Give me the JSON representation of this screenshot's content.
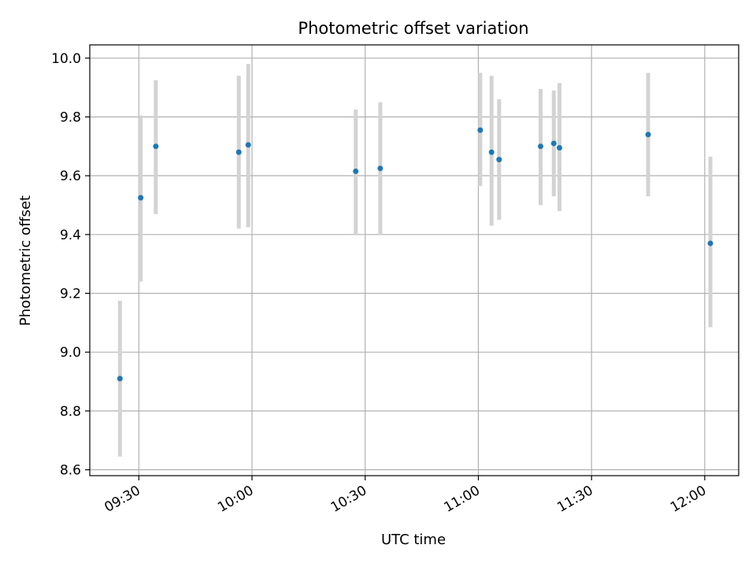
{
  "chart_data": {
    "type": "scatter",
    "title": "Photometric offset variation",
    "xlabel": "UTC time",
    "ylabel": "Photometric offset",
    "xlim": [
      "09:17:00",
      "12:09:00"
    ],
    "ylim": [
      8.58,
      10.045
    ],
    "x_ticks": [
      "09:30",
      "10:00",
      "10:30",
      "11:00",
      "11:30",
      "12:00"
    ],
    "y_ticks": [
      "8.6",
      "8.8",
      "9.0",
      "9.2",
      "9.4",
      "9.6",
      "9.8",
      "10.0"
    ],
    "grid": true,
    "colors": {
      "points": "#1f77b4",
      "errorbars": "#d3d3d3",
      "grid": "#b0b0b0"
    },
    "points": [
      {
        "time": "09:25:00",
        "value": 8.91,
        "err_low": 8.645,
        "err_high": 9.175
      },
      {
        "time": "09:30:30",
        "value": 9.525,
        "err_low": 9.24,
        "err_high": 9.805
      },
      {
        "time": "09:34:30",
        "value": 9.7,
        "err_low": 9.47,
        "err_high": 9.925
      },
      {
        "time": "09:56:30",
        "value": 9.68,
        "err_low": 9.42,
        "err_high": 9.94
      },
      {
        "time": "09:59:00",
        "value": 9.705,
        "err_low": 9.425,
        "err_high": 9.98
      },
      {
        "time": "10:27:30",
        "value": 9.615,
        "err_low": 9.4,
        "err_high": 9.825
      },
      {
        "time": "10:34:00",
        "value": 9.625,
        "err_low": 9.4,
        "err_high": 9.85
      },
      {
        "time": "11:00:30",
        "value": 9.755,
        "err_low": 9.565,
        "err_high": 9.95
      },
      {
        "time": "11:03:30",
        "value": 9.68,
        "err_low": 9.43,
        "err_high": 9.94
      },
      {
        "time": "11:05:30",
        "value": 9.655,
        "err_low": 9.45,
        "err_high": 9.86
      },
      {
        "time": "11:16:30",
        "value": 9.7,
        "err_low": 9.5,
        "err_high": 9.895
      },
      {
        "time": "11:20:00",
        "value": 9.71,
        "err_low": 9.53,
        "err_high": 9.89
      },
      {
        "time": "11:21:30",
        "value": 9.695,
        "err_low": 9.48,
        "err_high": 9.915
      },
      {
        "time": "11:45:00",
        "value": 9.74,
        "err_low": 9.53,
        "err_high": 9.95
      },
      {
        "time": "12:01:30",
        "value": 9.37,
        "err_low": 9.085,
        "err_high": 9.665
      }
    ]
  }
}
